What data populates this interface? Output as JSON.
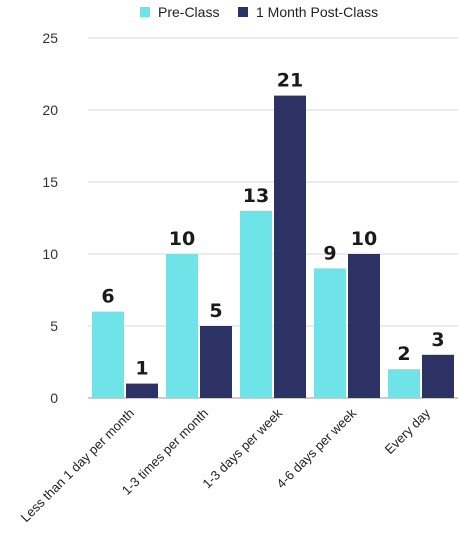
{
  "chart_data": {
    "type": "bar",
    "categories": [
      "Less than 1 day per month",
      "1-3 times per month",
      "1-3 days per week",
      "4-6 days per week",
      "Every day"
    ],
    "series": [
      {
        "name": "Pre-Class",
        "values": [
          6,
          10,
          13,
          9,
          2
        ],
        "color": "#6ee3e8"
      },
      {
        "name": "1 Month Post-Class",
        "values": [
          1,
          5,
          21,
          10,
          3
        ],
        "color": "#2c3264"
      }
    ],
    "yticks": [
      "0",
      "5",
      "10",
      "15",
      "20",
      "25"
    ],
    "ylim": [
      0,
      25
    ],
    "grid": true,
    "legend_position": "top-right"
  }
}
